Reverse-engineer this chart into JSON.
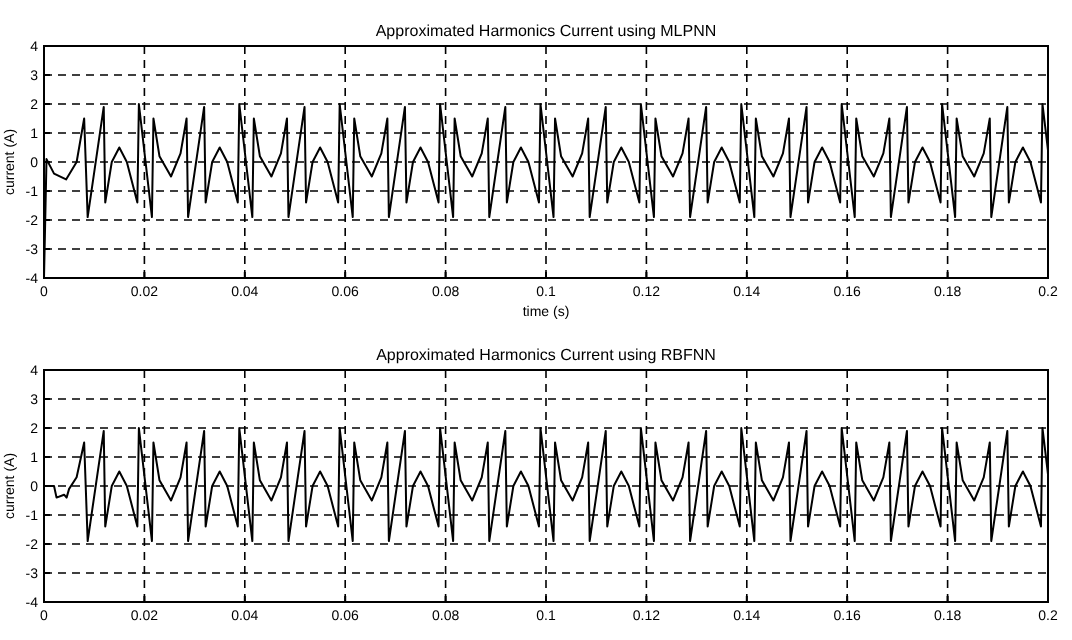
{
  "chart_data": [
    {
      "type": "line",
      "title": "Approximated Harmonics Current using MLPNN",
      "xlabel": "time (s)",
      "ylabel": "current (A)",
      "xlim": [
        0,
        0.2
      ],
      "xticks": [
        0,
        0.02,
        0.04,
        0.06,
        0.08,
        0.1,
        0.12,
        0.14,
        0.16,
        0.18,
        0.2
      ],
      "ylim": [
        -4,
        4
      ],
      "yticks": [
        -4,
        -3,
        -2,
        -1,
        0,
        1,
        2,
        3,
        4
      ],
      "grid": true,
      "series": [
        {
          "color": "#000000",
          "x": [
            0,
            0.0005,
            0.002,
            0.0044,
            0.0065,
            0.008,
            0.0087,
            0.0119,
            0.0122,
            0.0135,
            0.015,
            0.0165,
            0.0186,
            0.0189,
            0.0215,
            0.0218,
            0.023,
            0.0253,
            0.0272,
            0.0284,
            0.0287,
            0.0319,
            0.0322,
            0.0335,
            0.035,
            0.0365,
            0.0386,
            0.0389,
            0.0415,
            0.0418,
            0.043,
            0.0453,
            0.0472,
            0.0484,
            0.0487,
            0.0519,
            0.0522,
            0.0535,
            0.055,
            0.0565,
            0.0586,
            0.0589,
            0.0615,
            0.0618,
            0.063,
            0.0653,
            0.0672,
            0.0684,
            0.0687,
            0.0719,
            0.0722,
            0.0735,
            0.075,
            0.0765,
            0.0786,
            0.0789,
            0.0815,
            0.0818,
            0.083,
            0.0853,
            0.0872,
            0.0884,
            0.0887,
            0.0919,
            0.0922,
            0.0935,
            0.095,
            0.0965,
            0.0986,
            0.0989,
            0.1015,
            0.1018,
            0.103,
            0.1053,
            0.1072,
            0.1084,
            0.1087,
            0.1119,
            0.1122,
            0.1135,
            0.115,
            0.1165,
            0.1186,
            0.1189,
            0.1215,
            0.1218,
            0.123,
            0.1253,
            0.1272,
            0.1284,
            0.1287,
            0.1319,
            0.1322,
            0.1335,
            0.135,
            0.1365,
            0.1386,
            0.1389,
            0.1415,
            0.1418,
            0.143,
            0.1453,
            0.1472,
            0.1484,
            0.1487,
            0.1519,
            0.1522,
            0.1535,
            0.155,
            0.1565,
            0.1586,
            0.1589,
            0.1615,
            0.1618,
            0.163,
            0.1653,
            0.1672,
            0.1684,
            0.1687,
            0.1719,
            0.1722,
            0.1735,
            0.175,
            0.1765,
            0.1786,
            0.1789,
            0.1815,
            0.1818,
            0.183,
            0.1853,
            0.1872,
            0.1884,
            0.1887,
            0.1919,
            0.1922,
            0.1935,
            0.195,
            0.1965,
            0.1986,
            0.1989,
            0.2
          ],
          "values": [
            -4,
            0.1,
            -0.4,
            -0.6,
            0,
            1.5,
            -1.9,
            1.9,
            -1.4,
            0,
            0.5,
            0,
            -1.4,
            2,
            -1.9,
            1.5,
            0.2,
            -0.5,
            0.3,
            1.5,
            -1.9,
            1.9,
            -1.4,
            0,
            0.5,
            0,
            -1.4,
            2,
            -1.9,
            1.5,
            0.2,
            -0.5,
            0.3,
            1.5,
            -1.9,
            1.9,
            -1.4,
            0,
            0.5,
            0,
            -1.4,
            2,
            -1.9,
            1.5,
            0.2,
            -0.5,
            0.3,
            1.5,
            -1.9,
            1.9,
            -1.4,
            0,
            0.5,
            0,
            -1.4,
            2,
            -1.9,
            1.5,
            0.2,
            -0.5,
            0.3,
            1.5,
            -1.9,
            1.9,
            -1.4,
            0,
            0.5,
            0,
            -1.4,
            2,
            -1.9,
            1.5,
            0.2,
            -0.5,
            0.3,
            1.5,
            -1.9,
            1.9,
            -1.4,
            0,
            0.5,
            0,
            -1.4,
            2,
            -1.9,
            1.5,
            0.2,
            -0.5,
            0.3,
            1.5,
            -1.9,
            1.9,
            -1.4,
            0,
            0.5,
            0,
            -1.4,
            2,
            -1.9,
            1.5,
            0.2,
            -0.5,
            0.3,
            1.5,
            -1.9,
            1.9,
            -1.4,
            0,
            0.5,
            0,
            -1.4,
            2,
            -1.9,
            1.5,
            0.2,
            -0.5,
            0.3,
            1.5,
            -1.9,
            1.9,
            -1.4,
            0,
            0.5,
            0,
            -1.4,
            2,
            -1.9,
            1.5,
            0.2,
            -0.5,
            0.3,
            1.5,
            -1.9,
            1.9,
            -1.4,
            0,
            0.5,
            0,
            -1.4,
            2,
            0.4
          ]
        }
      ]
    },
    {
      "type": "line",
      "title": "Approximated Harmonics Current using RBFNN",
      "ylabel": "current (A)",
      "xlim": [
        0,
        0.2
      ],
      "xticks": [
        0,
        0.02,
        0.04,
        0.06,
        0.08,
        0.1,
        0.12,
        0.14,
        0.16,
        0.18,
        0.2
      ],
      "ylim": [
        -4,
        4
      ],
      "yticks": [
        -4,
        -3,
        -2,
        -1,
        0,
        1,
        2,
        3,
        4
      ],
      "grid": true,
      "series": [
        {
          "color": "#000000",
          "x": [
            0,
            0.002,
            0.0025,
            0.004,
            0.0045,
            0.005,
            0.0065,
            0.008,
            0.0087,
            0.0119,
            0.0122,
            0.0135,
            0.015,
            0.0165,
            0.0186,
            0.0189,
            0.0215,
            0.0218,
            0.023,
            0.0253,
            0.0272,
            0.0284,
            0.0287,
            0.0319,
            0.0322,
            0.0335,
            0.035,
            0.0365,
            0.0386,
            0.0389,
            0.0415,
            0.0418,
            0.043,
            0.0453,
            0.0472,
            0.0484,
            0.0487,
            0.0519,
            0.0522,
            0.0535,
            0.055,
            0.0565,
            0.0586,
            0.0589,
            0.0615,
            0.0618,
            0.063,
            0.0653,
            0.0672,
            0.0684,
            0.0687,
            0.0719,
            0.0722,
            0.0735,
            0.075,
            0.0765,
            0.0786,
            0.0789,
            0.0815,
            0.0818,
            0.083,
            0.0853,
            0.0872,
            0.0884,
            0.0887,
            0.0919,
            0.0922,
            0.0935,
            0.095,
            0.0965,
            0.0986,
            0.0989,
            0.1015,
            0.1018,
            0.103,
            0.1053,
            0.1072,
            0.1084,
            0.1087,
            0.1119,
            0.1122,
            0.1135,
            0.115,
            0.1165,
            0.1186,
            0.1189,
            0.1215,
            0.1218,
            0.123,
            0.1253,
            0.1272,
            0.1284,
            0.1287,
            0.1319,
            0.1322,
            0.1335,
            0.135,
            0.1365,
            0.1386,
            0.1389,
            0.1415,
            0.1418,
            0.143,
            0.1453,
            0.1472,
            0.1484,
            0.1487,
            0.1519,
            0.1522,
            0.1535,
            0.155,
            0.1565,
            0.1586,
            0.1589,
            0.1615,
            0.1618,
            0.163,
            0.1653,
            0.1672,
            0.1684,
            0.1687,
            0.1719,
            0.1722,
            0.1735,
            0.175,
            0.1765,
            0.1786,
            0.1789,
            0.1815,
            0.1818,
            0.183,
            0.1853,
            0.1872,
            0.1884,
            0.1887,
            0.1919,
            0.1922,
            0.1935,
            0.195,
            0.1965,
            0.1986,
            0.1989,
            0.2
          ],
          "values": [
            0,
            0,
            -0.4,
            -0.3,
            -0.4,
            -0.1,
            0.3,
            1.5,
            -1.9,
            1.9,
            -1.4,
            0,
            0.5,
            0,
            -1.4,
            2,
            -1.9,
            1.5,
            0.2,
            -0.5,
            0.3,
            1.5,
            -1.9,
            1.9,
            -1.4,
            0,
            0.5,
            0,
            -1.4,
            2,
            -1.9,
            1.5,
            0.2,
            -0.5,
            0.3,
            1.5,
            -1.9,
            1.9,
            -1.4,
            0,
            0.5,
            0,
            -1.4,
            2,
            -1.9,
            1.5,
            0.2,
            -0.5,
            0.3,
            1.5,
            -1.9,
            1.9,
            -1.4,
            0,
            0.5,
            0,
            -1.4,
            2,
            -1.9,
            1.5,
            0.2,
            -0.5,
            0.3,
            1.5,
            -1.9,
            1.9,
            -1.4,
            0,
            0.5,
            0,
            -1.4,
            2,
            -1.9,
            1.5,
            0.2,
            -0.5,
            0.3,
            1.5,
            -1.9,
            1.9,
            -1.4,
            0,
            0.5,
            0,
            -1.4,
            2,
            -1.9,
            1.5,
            0.2,
            -0.5,
            0.3,
            1.5,
            -1.9,
            1.9,
            -1.4,
            0,
            0.5,
            0,
            -1.4,
            2,
            -1.9,
            1.5,
            0.2,
            -0.5,
            0.3,
            1.5,
            -1.9,
            1.9,
            -1.4,
            0,
            0.5,
            0,
            -1.4,
            2,
            -1.9,
            1.5,
            0.2,
            -0.5,
            0.3,
            1.5,
            -1.9,
            1.9,
            -1.4,
            0,
            0.5,
            0,
            -1.4,
            2,
            -1.9,
            1.5,
            0.2,
            -0.5,
            0.3,
            1.5,
            -1.9,
            1.9,
            -1.4,
            0,
            0.5,
            0,
            -1.4,
            2,
            0.4
          ]
        }
      ]
    }
  ]
}
